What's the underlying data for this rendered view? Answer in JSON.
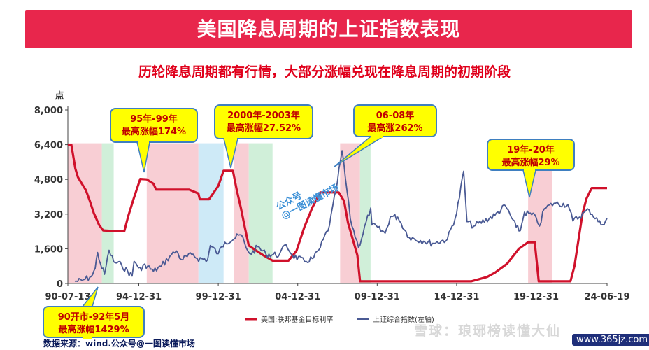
{
  "banner": {
    "title": "美国降息周期的上证指数表现"
  },
  "subtitle": "历轮降息周期都有行情，大部分涨幅兑现在降息周期的初期阶段",
  "source_note": "数据来源：wind.公众号@一图读懂市场",
  "watermark": "雪球：琅琊榜读懂大仙",
  "site_mark": "www.365jz.com",
  "overlay_label": "公众号\n@一图读懂市场",
  "colors": {
    "red_line": "#d0112b",
    "blue_line": "#4a5a94",
    "pink_band": "#f7c6cd",
    "green_band": "#c8ecd2",
    "blue_band": "#c5e6f6",
    "callout_fill": "#ffff00",
    "callout_border": "#3f7fc0"
  },
  "callouts": [
    {
      "lines": [
        "90开市-92年5月",
        "最高涨幅1429%"
      ]
    },
    {
      "lines": [
        "95年-99年",
        "最高涨幅174%"
      ]
    },
    {
      "lines": [
        "2000年-2003年",
        "最高涨幅27.52%"
      ]
    },
    {
      "lines": [
        "06-08年",
        "最高涨262%"
      ]
    },
    {
      "lines": [
        "19年-20年",
        "最高涨幅29%"
      ]
    }
  ],
  "chart_data": {
    "type": "line",
    "title": "",
    "ylabel": "点",
    "ylim": [
      0,
      8000
    ],
    "yticks": [
      0,
      1600,
      3200,
      4800,
      6400,
      8000
    ],
    "ytick_labels": [
      "0",
      "1,600",
      "3,200",
      "4,800",
      "6,400",
      "8,000"
    ],
    "xlim": [
      "1990-07-13",
      "2024-06-19"
    ],
    "xticks": [
      "1990-07-13",
      "1994-12-31",
      "1999-12-31",
      "2004-12-31",
      "2009-12-31",
      "2014-12-31",
      "2019-12-31",
      "2024-06-19"
    ],
    "xtick_labels": [
      "90-07-13",
      "94-12-31",
      "99-12-31",
      "04-12-31",
      "09-12-31",
      "14-12-31",
      "19-12-31",
      "24-06-19"
    ],
    "legend": {
      "placement": "bottom-center"
    },
    "series": [
      {
        "name": "美国:联邦基金目标利率",
        "axis": "left (rescaled; visual)",
        "points": [
          [
            "1990-07-13",
            6400
          ],
          [
            "1990-10-01",
            6400
          ],
          [
            "1991-01-01",
            5300
          ],
          [
            "1991-03-01",
            4900
          ],
          [
            "1991-06-01",
            4600
          ],
          [
            "1991-09-01",
            4300
          ],
          [
            "1991-12-01",
            3800
          ],
          [
            "1992-03-01",
            3250
          ],
          [
            "1992-07-01",
            2700
          ],
          [
            "1992-10-01",
            2450
          ],
          [
            "1993-06-01",
            2420
          ],
          [
            "1994-02-01",
            2420
          ],
          [
            "1994-05-01",
            3100
          ],
          [
            "1994-09-01",
            3900
          ],
          [
            "1995-02-01",
            4820
          ],
          [
            "1995-07-01",
            4800
          ],
          [
            "1995-12-01",
            4600
          ],
          [
            "1996-02-01",
            4330
          ],
          [
            "1997-06-01",
            4330
          ],
          [
            "1998-03-01",
            4330
          ],
          [
            "1998-10-01",
            4150
          ],
          [
            "1998-11-01",
            3880
          ],
          [
            "1999-06-01",
            3880
          ],
          [
            "1999-09-01",
            4150
          ],
          [
            "2000-01-01",
            4500
          ],
          [
            "2000-05-01",
            5200
          ],
          [
            "2000-12-01",
            5200
          ],
          [
            "2001-03-01",
            4300
          ],
          [
            "2001-06-01",
            3500
          ],
          [
            "2001-09-01",
            2600
          ],
          [
            "2001-12-01",
            1750
          ],
          [
            "2002-06-01",
            1500
          ],
          [
            "2002-11-01",
            1300
          ],
          [
            "2003-06-01",
            1050
          ],
          [
            "2004-06-01",
            1050
          ],
          [
            "2004-12-01",
            1500
          ],
          [
            "2005-06-01",
            2600
          ],
          [
            "2005-12-01",
            3500
          ],
          [
            "2006-06-01",
            4200
          ],
          [
            "2007-08-01",
            4200
          ],
          [
            "2007-12-01",
            3800
          ],
          [
            "2008-03-01",
            2800
          ],
          [
            "2008-10-01",
            1300
          ],
          [
            "2008-12-01",
            100
          ],
          [
            "2015-12-01",
            100
          ],
          [
            "2016-12-01",
            300
          ],
          [
            "2017-06-01",
            500
          ],
          [
            "2018-03-01",
            900
          ],
          [
            "2018-12-01",
            1600
          ],
          [
            "2019-07-01",
            1900
          ],
          [
            "2019-12-01",
            1900
          ],
          [
            "2020-03-01",
            100
          ],
          [
            "2022-03-01",
            100
          ],
          [
            "2022-06-01",
            800
          ],
          [
            "2022-09-01",
            2000
          ],
          [
            "2022-12-01",
            3200
          ],
          [
            "2023-03-01",
            3900
          ],
          [
            "2023-07-01",
            4400
          ],
          [
            "2024-06-19",
            4400
          ]
        ]
      },
      {
        "name": "上证综合指数(左轴)",
        "axis": "left",
        "points": [
          [
            "1990-12-19",
            100
          ],
          [
            "1991-06-01",
            130
          ],
          [
            "1991-12-01",
            290
          ],
          [
            "1992-02-01",
            400
          ],
          [
            "1992-04-01",
            700
          ],
          [
            "1992-05-26",
            1430
          ],
          [
            "1992-08-01",
            900
          ],
          [
            "1992-11-01",
            420
          ],
          [
            "1993-02-15",
            1530
          ],
          [
            "1993-06-01",
            1000
          ],
          [
            "1993-12-01",
            850
          ],
          [
            "1994-07-29",
            340
          ],
          [
            "1994-09-13",
            1020
          ],
          [
            "1995-03-01",
            600
          ],
          [
            "1995-05-18",
            900
          ],
          [
            "1995-12-01",
            560
          ],
          [
            "1996-06-01",
            800
          ],
          [
            "1996-12-11",
            1250
          ],
          [
            "1997-05-12",
            1500
          ],
          [
            "1997-09-01",
            1100
          ],
          [
            "1998-06-01",
            1350
          ],
          [
            "1998-09-01",
            1150
          ],
          [
            "1999-05-01",
            1100
          ],
          [
            "1999-06-30",
            1750
          ],
          [
            "1999-12-31",
            1370
          ],
          [
            "2000-06-01",
            1900
          ],
          [
            "2001-06-14",
            2240
          ],
          [
            "2001-10-01",
            1650
          ],
          [
            "2002-01-29",
            1350
          ],
          [
            "2002-06-25",
            1700
          ],
          [
            "2003-01-01",
            1350
          ],
          [
            "2003-11-01",
            1320
          ],
          [
            "2004-04-07",
            1780
          ],
          [
            "2004-09-01",
            1300
          ],
          [
            "2005-06-06",
            1000
          ],
          [
            "2006-01-01",
            1180
          ],
          [
            "2006-06-01",
            1650
          ],
          [
            "2006-12-31",
            2680
          ],
          [
            "2007-05-30",
            4300
          ],
          [
            "2007-10-16",
            6124
          ],
          [
            "2008-04-22",
            2990
          ],
          [
            "2008-10-28",
            1665
          ],
          [
            "2009-08-04",
            3478
          ],
          [
            "2009-09-01",
            2700
          ],
          [
            "2010-07-02",
            2320
          ],
          [
            "2010-11-01",
            3100
          ],
          [
            "2011-04-18",
            3060
          ],
          [
            "2012-01-06",
            2130
          ],
          [
            "2012-12-04",
            1950
          ],
          [
            "2013-06-25",
            1850
          ],
          [
            "2014-06-01",
            2040
          ],
          [
            "2014-12-31",
            3230
          ],
          [
            "2015-06-12",
            5178
          ],
          [
            "2015-08-26",
            2850
          ],
          [
            "2016-01-28",
            2640
          ],
          [
            "2017-06-01",
            3150
          ],
          [
            "2018-01-24",
            3590
          ],
          [
            "2018-10-01",
            2600
          ],
          [
            "2019-01-04",
            2440
          ],
          [
            "2019-04-08",
            3290
          ],
          [
            "2019-12-31",
            3050
          ],
          [
            "2020-03-19",
            2650
          ],
          [
            "2020-07-09",
            3450
          ],
          [
            "2021-02-18",
            3700
          ],
          [
            "2021-12-31",
            3640
          ],
          [
            "2022-04-26",
            2880
          ],
          [
            "2023-05-01",
            3400
          ],
          [
            "2024-02-05",
            2700
          ],
          [
            "2024-06-19",
            3000
          ]
        ]
      }
    ],
    "bands": [
      {
        "color": "pink",
        "from": "1990-07-13",
        "to": "1992-09-01"
      },
      {
        "color": "green",
        "from": "1992-09-01",
        "to": "1993-06-01"
      },
      {
        "color": "pink",
        "from": "1995-07-01",
        "to": "1998-10-01"
      },
      {
        "color": "blue",
        "from": "1998-10-01",
        "to": "2000-05-01"
      },
      {
        "color": "pink",
        "from": "2001-01-01",
        "to": "2001-12-01"
      },
      {
        "color": "green",
        "from": "2001-12-01",
        "to": "2003-06-01"
      },
      {
        "color": "pink",
        "from": "2007-09-01",
        "to": "2008-12-01"
      },
      {
        "color": "green",
        "from": "2008-12-01",
        "to": "2009-08-01"
      },
      {
        "color": "pink",
        "from": "2019-07-01",
        "to": "2021-01-01"
      }
    ]
  }
}
